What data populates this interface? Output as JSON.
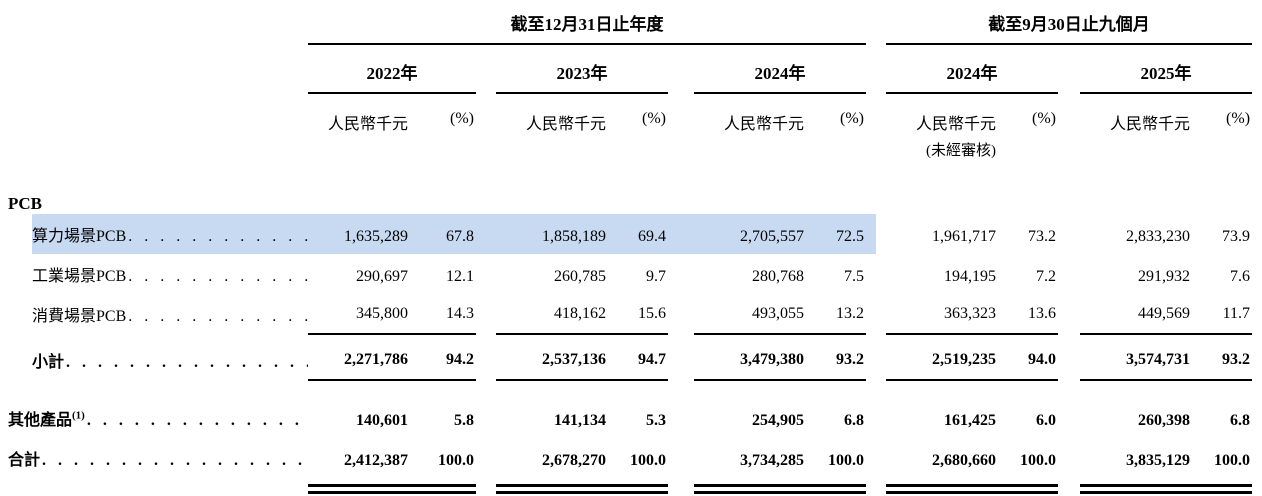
{
  "document": {
    "background": "#ffffff",
    "text_color": "#000000",
    "highlight_color": "#c8daf2",
    "rule_color": "#000000"
  },
  "table": {
    "sections": [
      {
        "title": "截至12月31日止年度",
        "years": [
          {
            "label": "2022年",
            "unit": "人民幣千元",
            "pct": "(%)",
            "note": ""
          },
          {
            "label": "2023年",
            "unit": "人民幣千元",
            "pct": "(%)",
            "note": ""
          },
          {
            "label": "2024年",
            "unit": "人民幣千元",
            "pct": "(%)",
            "note": ""
          }
        ]
      },
      {
        "title": "截至9月30日止九個月",
        "years": [
          {
            "label": "2024年",
            "unit": "人民幣千元",
            "pct": "(%)",
            "note": "(未經審核)"
          },
          {
            "label": "2025年",
            "unit": "人民幣千元",
            "pct": "(%)",
            "note": ""
          }
        ]
      }
    ],
    "rows": [
      {
        "type": "section",
        "name": "section-header-pcb",
        "label": "PCB"
      },
      {
        "type": "data",
        "name": "row-compute-pcb",
        "label": "算力場景PCB",
        "sup": "",
        "leader": ". . . . . . . . . . . . . . . . . . . . . . . . .",
        "indent": true,
        "highlight": true,
        "bold": false,
        "rule_below": false,
        "gap": "",
        "values": [
          "1,635,289",
          "67.8",
          "1,858,189",
          "69.4",
          "2,705,557",
          "72.5",
          "1,961,717",
          "73.2",
          "2,833,230",
          "73.9"
        ]
      },
      {
        "type": "data",
        "name": "row-industrial-pcb",
        "label": "工業場景PCB",
        "sup": "",
        "leader": ". . . . . . . . . . . . . . . . . . . . . . . . .",
        "indent": true,
        "highlight": false,
        "bold": false,
        "rule_below": false,
        "gap": "",
        "values": [
          "290,697",
          "12.1",
          "260,785",
          "9.7",
          "280,768",
          "7.5",
          "194,195",
          "7.2",
          "291,932",
          "7.6"
        ]
      },
      {
        "type": "data",
        "name": "row-consumer-pcb",
        "label": "消費場景PCB",
        "sup": "",
        "leader": ". . . . . . . . . . . . . . . . . . . . . . . . .",
        "indent": true,
        "highlight": false,
        "bold": false,
        "rule_below": true,
        "gap": "",
        "values": [
          "345,800",
          "14.3",
          "418,162",
          "15.6",
          "493,055",
          "13.2",
          "363,323",
          "13.6",
          "449,569",
          "11.7"
        ]
      },
      {
        "type": "data",
        "name": "row-subtotal",
        "label": "小計",
        "sup": "",
        "leader": ". . . . . . . . . . . . . . . . . . . . . . . . . . . . .",
        "indent": true,
        "highlight": false,
        "bold": true,
        "rule_below": true,
        "gap": "sm",
        "values": [
          "2,271,786",
          "94.2",
          "2,537,136",
          "94.7",
          "3,479,380",
          "93.2",
          "2,519,235",
          "94.0",
          "3,574,731",
          "93.2"
        ]
      },
      {
        "type": "data",
        "name": "row-other-products",
        "label": "其他產品",
        "sup": "(1)",
        "leader": ". . . . . . . . . . . . . . . . . . . . . . . . .",
        "indent": false,
        "highlight": false,
        "bold": true,
        "rule_below": false,
        "gap": "lg",
        "values": [
          "140,601",
          "5.8",
          "141,134",
          "5.3",
          "254,905",
          "6.8",
          "161,425",
          "6.0",
          "260,398",
          "6.8"
        ]
      },
      {
        "type": "data",
        "name": "row-total",
        "label": "合計",
        "sup": "",
        "leader": ". . . . . . . . . . . . . . . . . . . . . . . . . . . . .",
        "indent": false,
        "highlight": false,
        "bold": true,
        "rule_below": false,
        "gap": "",
        "double_rule_below": true,
        "values": [
          "2,412,387",
          "100.0",
          "2,678,270",
          "100.0",
          "3,734,285",
          "100.0",
          "2,680,660",
          "100.0",
          "3,835,129",
          "100.0"
        ]
      }
    ]
  }
}
